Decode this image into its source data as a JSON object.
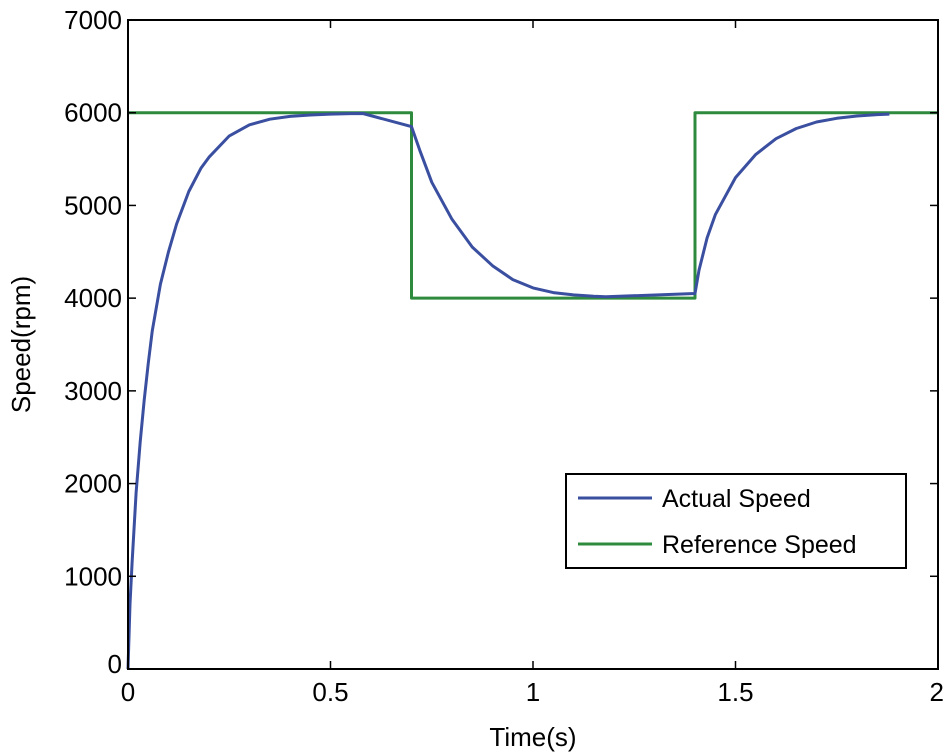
{
  "chart_data": {
    "type": "line",
    "title": "",
    "xlabel": "Time(s)",
    "ylabel": "Speed(rpm)",
    "xlim": [
      0,
      2
    ],
    "ylim": [
      0,
      7000
    ],
    "xticks": [
      0,
      0.5,
      1,
      1.5,
      2
    ],
    "yticks": [
      0,
      1000,
      2000,
      3000,
      4000,
      5000,
      6000,
      7000
    ],
    "xtick_labels": [
      "0",
      "0.5",
      "1",
      "1.5",
      "2"
    ],
    "ytick_labels": [
      "0",
      "1000",
      "2000",
      "3000",
      "4000",
      "5000",
      "6000",
      "7000"
    ],
    "grid": false,
    "legend_position": "lower-right",
    "series": [
      {
        "name": "Actual Speed",
        "color": "#3a4fa0",
        "x": [
          0,
          0.005,
          0.01,
          0.02,
          0.03,
          0.04,
          0.05,
          0.06,
          0.08,
          0.1,
          0.12,
          0.15,
          0.18,
          0.2,
          0.25,
          0.3,
          0.35,
          0.4,
          0.45,
          0.5,
          0.55,
          0.58,
          0.7,
          0.72,
          0.75,
          0.8,
          0.85,
          0.9,
          0.95,
          1.0,
          1.05,
          1.1,
          1.15,
          1.18,
          1.4,
          1.41,
          1.43,
          1.45,
          1.5,
          1.55,
          1.6,
          1.65,
          1.7,
          1.75,
          1.8,
          1.85,
          1.88
        ],
        "y": [
          0,
          700,
          1150,
          1900,
          2450,
          2900,
          3300,
          3650,
          4150,
          4500,
          4800,
          5150,
          5400,
          5520,
          5750,
          5870,
          5930,
          5960,
          5975,
          5985,
          5990,
          5992,
          5850,
          5600,
          5250,
          4850,
          4550,
          4350,
          4200,
          4110,
          4060,
          4035,
          4020,
          4015,
          4050,
          4300,
          4650,
          4900,
          5300,
          5550,
          5720,
          5830,
          5900,
          5940,
          5965,
          5980,
          5985
        ]
      },
      {
        "name": "Reference Speed",
        "color": "#2e8b3e",
        "x": [
          0,
          0.7,
          0.7,
          1.4,
          1.4,
          2.0
        ],
        "y": [
          6000,
          6000,
          4000,
          4000,
          6000,
          6000
        ]
      }
    ]
  }
}
